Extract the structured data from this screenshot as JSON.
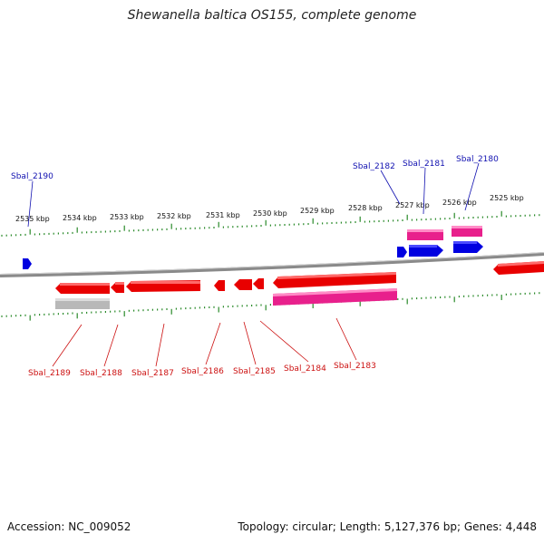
{
  "title": "Shewanella baltica OS155, complete genome",
  "accession": "Accession: NC_009052",
  "summary": "Topology: circular; Length: 5,127,376 bp; Genes: 4,448",
  "kbp_labels": [
    "2535 kbp",
    "2534 kbp",
    "2533 kbp",
    "2532 kbp",
    "2531 kbp",
    "2530 kbp",
    "2529 kbp",
    "2528 kbp",
    "2527 kbp",
    "2526 kbp",
    "2525 kbp"
  ],
  "top_genes": [
    {
      "label": "Sbal_2190"
    },
    {
      "label": "Sbal_2182"
    },
    {
      "label": "Sbal_2181"
    },
    {
      "label": "Sbal_2180"
    }
  ],
  "bottom_genes": [
    {
      "label": "Sbal_2189"
    },
    {
      "label": "Sbal_2188"
    },
    {
      "label": "Sbal_2187"
    },
    {
      "label": "Sbal_2186"
    },
    {
      "label": "Sbal_2185"
    },
    {
      "label": "Sbal_2184"
    },
    {
      "label": "Sbal_2183"
    }
  ],
  "colors": {
    "cds": "#e80000",
    "cds_top": "#ff5a5a",
    "gene_blue": "#0000e0",
    "rna_pink": "#e8208c",
    "pseudo_grey": "#b8b8b8",
    "tick": "#2a8a2a",
    "label_blue": "#1010b0",
    "label_red": "#cc1010",
    "backbone": "#8a8a8a"
  }
}
